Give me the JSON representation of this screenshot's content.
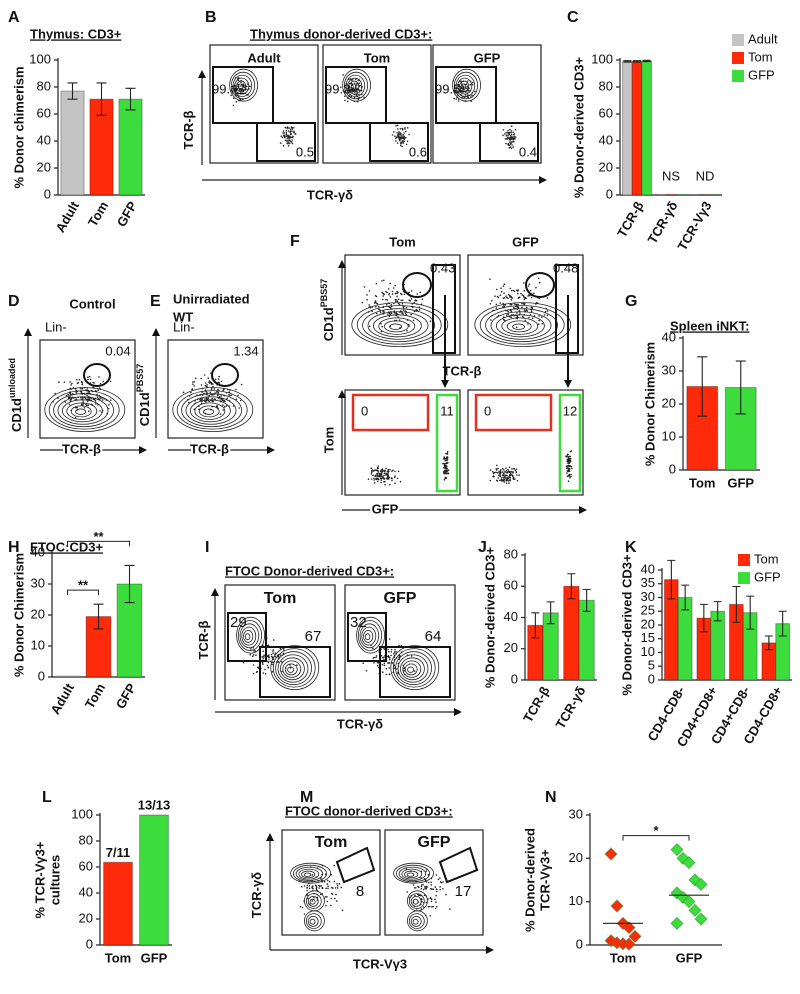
{
  "chart_data": [
    {
      "panel": "A",
      "type": "bar",
      "title": "Thymus: CD3+",
      "ylabel": "% Donor chimerism",
      "categories": [
        "Adult",
        "Tom",
        "GFP"
      ],
      "values": [
        77,
        71,
        71
      ],
      "errors": [
        6,
        12,
        8
      ],
      "colors": [
        "#c4c4c4",
        "#ff2a0a",
        "#3ddc3d"
      ],
      "ylim": [
        0,
        100
      ],
      "yticks": [
        0,
        20,
        40,
        60,
        80,
        100
      ]
    },
    {
      "panel": "C",
      "type": "bar",
      "ylabel": "% Donor-derived CD3+",
      "categories": [
        "TCR-β",
        "TCR-γδ",
        "TCR-Vγ3"
      ],
      "category_notes": [
        null,
        "NS",
        "ND"
      ],
      "series": [
        {
          "name": "Adult",
          "color": "#c4c4c4",
          "values": [
            99,
            0.3,
            0.2
          ],
          "errors": [
            0.5,
            null,
            null
          ]
        },
        {
          "name": "Tom",
          "color": "#ff2a0a",
          "values": [
            99,
            0.4,
            0.2
          ],
          "errors": [
            0.5,
            null,
            null
          ]
        },
        {
          "name": "GFP",
          "color": "#3ddc3d",
          "values": [
            99.3,
            0.3,
            0.2
          ],
          "errors": [
            0.5,
            null,
            null
          ]
        }
      ],
      "legend": "top-right",
      "ylim": [
        0,
        100
      ],
      "yticks": [
        0,
        20,
        40,
        60,
        80,
        100
      ]
    },
    {
      "panel": "G",
      "type": "bar",
      "title": "Spleen iNKT:",
      "ylabel": "% Donor Chimerism",
      "categories": [
        "Tom",
        "GFP"
      ],
      "values": [
        25.3,
        25
      ],
      "errors": [
        9,
        8
      ],
      "colors": [
        "#ff2a0a",
        "#3ddc3d"
      ],
      "ylim": [
        0,
        40
      ],
      "yticks": [
        0,
        10,
        20,
        30,
        40
      ]
    },
    {
      "panel": "H",
      "type": "bar",
      "title": "FTOC:CD3+",
      "ylabel": "% Donor Chimerism",
      "categories": [
        "Adult",
        "Tom",
        "GFP"
      ],
      "values": [
        0.3,
        19.5,
        30
      ],
      "errors": [
        null,
        4,
        6
      ],
      "colors": [
        "#c4c4c4",
        "#ff2a0a",
        "#3ddc3d"
      ],
      "ylim": [
        0,
        40
      ],
      "yticks": [
        0,
        10,
        20,
        30,
        40
      ],
      "significance": [
        {
          "pair": [
            0,
            1
          ],
          "label": "**"
        },
        {
          "pair": [
            0,
            2
          ],
          "label": "**"
        }
      ]
    },
    {
      "panel": "J",
      "type": "bar",
      "ylabel": "% Donor-derived CD3+",
      "categories": [
        "TCR-β",
        "TCR-γδ"
      ],
      "series": [
        {
          "name": "Tom",
          "color": "#ff2a0a",
          "values": [
            35,
            60
          ],
          "errors": [
            8,
            8
          ]
        },
        {
          "name": "GFP",
          "color": "#3ddc3d",
          "values": [
            43,
            51
          ],
          "errors": [
            7,
            7
          ]
        }
      ],
      "ylim": [
        0,
        80
      ],
      "yticks": [
        0,
        20,
        40,
        60,
        80
      ]
    },
    {
      "panel": "K",
      "type": "bar",
      "ylabel": "% Donor-derived CD3+",
      "categories": [
        "CD4-CD8-",
        "CD4+CD8+",
        "CD4+CD8-",
        "CD4-CD8+"
      ],
      "series": [
        {
          "name": "Tom",
          "color": "#ff2a0a",
          "values": [
            36.5,
            22.5,
            27.5,
            13.5
          ],
          "errors": [
            7,
            5,
            6.5,
            2.5
          ]
        },
        {
          "name": "GFP",
          "color": "#3ddc3d",
          "values": [
            30,
            25,
            24.5,
            20.5
          ],
          "errors": [
            4.5,
            3.5,
            6,
            4.5
          ]
        }
      ],
      "legend": "top-right",
      "ylim": [
        0,
        40
      ],
      "yticks": [
        0,
        5,
        10,
        15,
        20,
        25,
        30,
        35,
        40
      ]
    },
    {
      "panel": "L",
      "type": "bar",
      "ylabel": [
        "% TCR-Vγ3+",
        "cultures"
      ],
      "categories": [
        "Tom",
        "GFP"
      ],
      "values": [
        63.6,
        100
      ],
      "value_labels": [
        "7/11",
        "13/13"
      ],
      "colors": [
        "#ff2a0a",
        "#3ddc3d"
      ],
      "ylim": [
        0,
        100
      ],
      "yticks": [
        0,
        20,
        40,
        60,
        80,
        100
      ]
    },
    {
      "panel": "N",
      "type": "strip",
      "ylabel": [
        "% Donor-derived",
        "TCR-Vγ3+"
      ],
      "categories": [
        "Tom",
        "GFP"
      ],
      "groups": [
        {
          "color": "#ff2a0a",
          "values": [
            21,
            9,
            5,
            4,
            2,
            1,
            0.5,
            0.3,
            0.2
          ],
          "mean": 5
        },
        {
          "color": "#3ddc3d",
          "values": [
            22,
            20,
            19,
            15,
            14,
            12,
            11,
            10,
            8,
            6,
            5
          ],
          "mean": 11.5
        }
      ],
      "significance": [
        {
          "pair": [
            0,
            1
          ],
          "label": "*"
        }
      ],
      "ylim": [
        0,
        30
      ],
      "yticks": [
        0,
        10,
        20,
        30
      ]
    }
  ],
  "flow_panels": [
    {
      "panel": "B",
      "title": "Thymus donor-derived CD3+:",
      "ylabel": "TCR-β",
      "xlabel": "TCR-γδ",
      "plots": [
        {
          "label": "Adult",
          "gates": [
            99.4,
            0.5
          ]
        },
        {
          "label": "Tom",
          "gates": [
            99.3,
            0.6
          ]
        },
        {
          "label": "GFP",
          "gates": [
            99.5,
            0.4
          ]
        }
      ]
    },
    {
      "panel": "D",
      "title": "Control",
      "gate_label": "Lin-",
      "ylabel": "CD1d",
      "ylabel_sup": "unloaded",
      "xlabel": "TCR-β",
      "gates": [
        0.04
      ]
    },
    {
      "panel": "E",
      "title": [
        "Unirradiated",
        "WT"
      ],
      "gate_label": "Lin-",
      "ylabel": "CD1d",
      "ylabel_sup": "PBS57",
      "xlabel": "TCR-β",
      "gates": [
        1.34
      ]
    },
    {
      "panel": "F",
      "ylabel": "CD1d",
      "ylabel_sup": "PBS57",
      "xlabel": "TCR-β",
      "plots": [
        {
          "label": "Tom",
          "gates": [
            0.43
          ]
        },
        {
          "label": "GFP",
          "gates": [
            0.48
          ]
        }
      ],
      "sub_ylabel": "Tom",
      "sub_xlabel": "GFP",
      "sub_plots": [
        {
          "gates": [
            0,
            11
          ]
        },
        {
          "gates": [
            0,
            12
          ]
        }
      ]
    },
    {
      "panel": "I",
      "title": "FTOC Donor-derived CD3+:",
      "ylabel": "TCR-β",
      "xlabel": "TCR-γδ",
      "plots": [
        {
          "label": "Tom",
          "gates": [
            29,
            67
          ]
        },
        {
          "label": "GFP",
          "gates": [
            32,
            64
          ]
        }
      ]
    },
    {
      "panel": "M",
      "title": "FTOC donor-derived CD3+:",
      "ylabel": "TCR-γδ",
      "xlabel": "TCR-Vγ3",
      "plots": [
        {
          "label": "Tom",
          "gates": [
            8
          ]
        },
        {
          "label": "GFP",
          "gates": [
            17
          ]
        }
      ]
    }
  ]
}
